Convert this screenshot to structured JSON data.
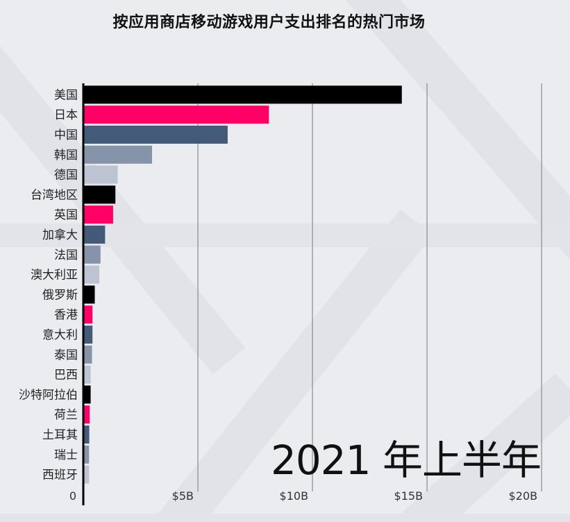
{
  "title": "按应用商店移动游戏用户支出排名的热门市场",
  "period_label": "2021 年上半年",
  "colors": {
    "background": "#ebecf0",
    "palette": [
      "#000000",
      "#ff0066",
      "#435a78",
      "#8694aa",
      "#bec3d2"
    ],
    "gridline": "#777777"
  },
  "chart_data": {
    "type": "bar",
    "orientation": "horizontal",
    "title": "按应用商店移动游戏用户支出排名的热门市场",
    "unit": "B",
    "xlim": [
      0,
      20.3
    ],
    "xticks": [
      0,
      5,
      10,
      15,
      20
    ],
    "xtick_labels": [
      "0",
      "$5B",
      "$10B",
      "$15B",
      "$20B"
    ],
    "grid": true,
    "categories": [
      "美国",
      "日本",
      "中国",
      "韩国",
      "德国",
      "台湾地区",
      "英国",
      "加拿大",
      "法国",
      "澳大利亚",
      "俄罗斯",
      "香港",
      "意大利",
      "泰国",
      "巴西",
      "沙特阿拉伯",
      "荷兰",
      "土耳其",
      "瑞士",
      "西班牙"
    ],
    "values": [
      13.9,
      8.1,
      6.3,
      3.0,
      1.5,
      1.4,
      1.3,
      0.95,
      0.75,
      0.7,
      0.5,
      0.4,
      0.4,
      0.38,
      0.32,
      0.32,
      0.28,
      0.26,
      0.25,
      0.25
    ]
  }
}
